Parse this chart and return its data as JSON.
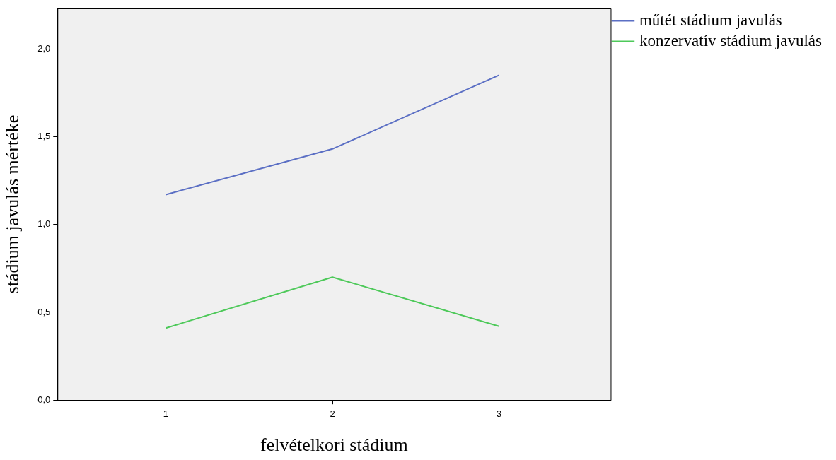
{
  "chart_data": {
    "type": "line",
    "xlabel": "felvételkori stádium",
    "ylabel": "stádium javulás mértéke",
    "x": [
      1,
      2,
      3
    ],
    "xlim": [
      0.35,
      3.67
    ],
    "xticks": [
      1,
      2,
      3
    ],
    "ylim": [
      0,
      2.23
    ],
    "yticks": [
      {
        "value": 0,
        "label": "0,0"
      },
      {
        "value": 0.5,
        "label": "0,5"
      },
      {
        "value": 1,
        "label": "1,0"
      },
      {
        "value": 1.5,
        "label": "1,5"
      },
      {
        "value": 2,
        "label": "2,0"
      }
    ],
    "series": [
      {
        "name": "műtét stádium javulás",
        "color": "#5b6fc4",
        "values": [
          1.17,
          1.43,
          1.85
        ]
      },
      {
        "name": "konzervatív stádium javulás",
        "color": "#4ec95a",
        "values": [
          0.41,
          0.7,
          0.42
        ]
      }
    ],
    "grid": false,
    "legend": "top right",
    "marker": "none",
    "line_style": "solid"
  }
}
